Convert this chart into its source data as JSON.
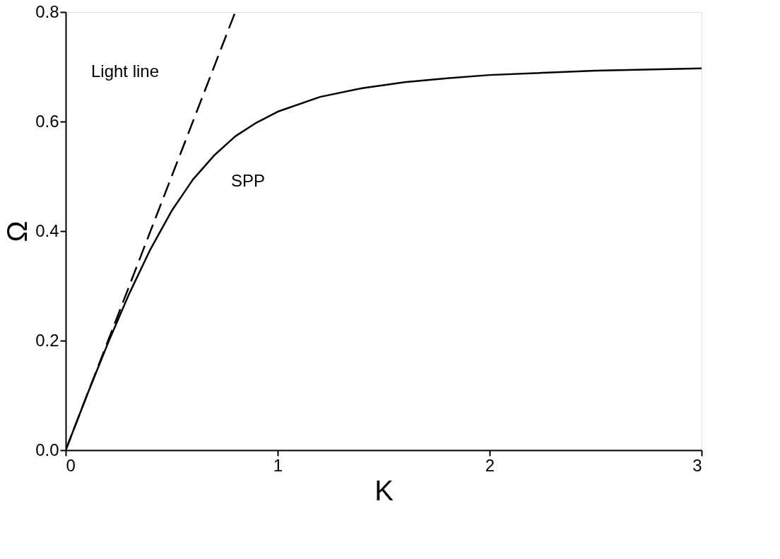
{
  "chart_data": {
    "type": "line",
    "xlabel": "K",
    "ylabel": "Ω",
    "xlim": [
      0,
      3
    ],
    "ylim": [
      0,
      0.8
    ],
    "xticks": [
      0,
      1,
      2,
      3
    ],
    "yticks": [
      {
        "value": 0,
        "label": "0.0"
      },
      0.2,
      0.4,
      0.6,
      0.8
    ],
    "grid": false,
    "marker": "none",
    "series": [
      {
        "color": "#000000",
        "line_style": "dashed",
        "x": [
          0,
          0.8
        ],
        "values": [
          0,
          0.8
        ]
      },
      {
        "color": "#000000",
        "line_style": "solid",
        "x": [
          0,
          0.1,
          0.2,
          0.3,
          0.4,
          0.5,
          0.6,
          0.7,
          0.8,
          0.9,
          1.0,
          1.2,
          1.4,
          1.6,
          1.8,
          2.0,
          2.5,
          3.0
        ],
        "values": [
          0,
          0.1,
          0.196,
          0.286,
          0.367,
          0.437,
          0.494,
          0.538,
          0.573,
          0.598,
          0.618,
          0.645,
          0.661,
          0.672,
          0.679,
          0.685,
          0.693,
          0.697
        ]
      }
    ],
    "annotations": [
      "Light line",
      "SPP"
    ]
  }
}
